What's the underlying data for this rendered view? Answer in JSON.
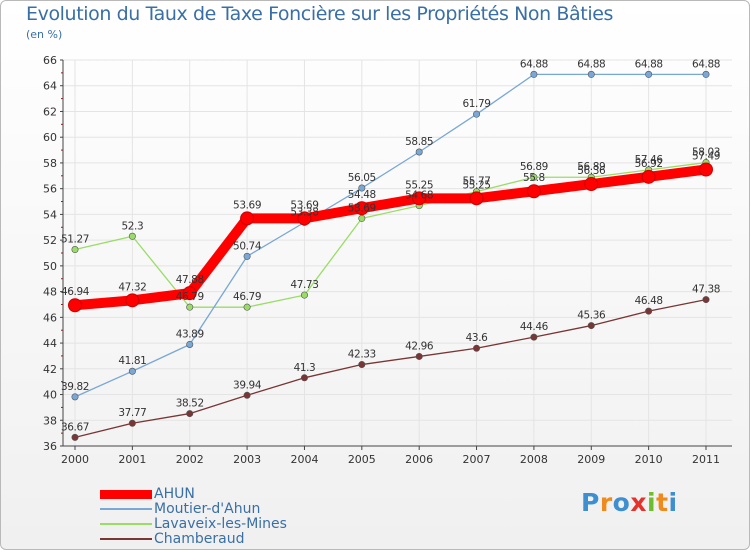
{
  "title": "Evolution du Taux de Taxe Foncière sur les Propriétés Non Bâties",
  "subtitle": "(en %)",
  "logo": "Proxiti",
  "chart_data": {
    "type": "line",
    "title": "Evolution du Taux de Taxe Foncière sur les Propriétés Non Bâties",
    "ylabel": "(en %)",
    "x": [
      "2000",
      "2001",
      "2002",
      "2003",
      "2004",
      "2005",
      "2006",
      "2007",
      "2008",
      "2009",
      "2010",
      "2011"
    ],
    "ylim": [
      36,
      66
    ],
    "yticks": [
      36,
      38,
      40,
      42,
      44,
      46,
      48,
      50,
      52,
      54,
      56,
      58,
      60,
      62,
      64,
      66
    ],
    "grid": true,
    "legend_position": "bottom-left",
    "series": [
      {
        "name": "AHUN",
        "color": "#ff0000",
        "values": [
          46.94,
          47.32,
          47.88,
          53.69,
          53.69,
          54.48,
          55.25,
          55.25,
          55.8,
          56.36,
          56.92,
          57.49
        ],
        "labels": [
          "46.94",
          "47.32",
          "47.88",
          "53.69",
          "53.69",
          "54.48",
          "55.25",
          "55.25",
          "55.8",
          "56.36",
          "56.92",
          "57.49"
        ]
      },
      {
        "name": "Moutier-d'Ahun",
        "color": "#79a7d6",
        "values": [
          39.82,
          41.81,
          43.89,
          50.74,
          53.38,
          56.05,
          58.85,
          61.79,
          64.88,
          64.88,
          64.88,
          64.88
        ],
        "labels": [
          "39.82",
          "41.81",
          "43.89",
          "50.74",
          "53.38",
          "56.05",
          "58.85",
          "61.79",
          "64.88",
          "64.88",
          "64.88",
          "64.88"
        ]
      },
      {
        "name": "Lavaveix-les-Mines",
        "color": "#99dd66",
        "values": [
          51.27,
          52.3,
          46.79,
          46.79,
          47.73,
          53.69,
          54.68,
          55.77,
          56.89,
          56.89,
          57.46,
          58.03
        ],
        "labels": [
          "51.27",
          "52.3",
          "46.79",
          "46.79",
          "47.73",
          "53.69",
          "54.68",
          "55.77",
          "56.89",
          "56.89",
          "57.46",
          "58.03"
        ]
      },
      {
        "name": "Chamberaud",
        "color": "#7a3535",
        "values": [
          36.67,
          37.77,
          38.52,
          39.94,
          41.3,
          42.33,
          42.96,
          43.6,
          44.46,
          45.36,
          46.48,
          47.38
        ],
        "labels": [
          "36.67",
          "37.77",
          "38.52",
          "39.94",
          "41.3",
          "42.33",
          "42.96",
          "43.6",
          "44.46",
          "45.36",
          "46.48",
          "47.38"
        ]
      }
    ]
  }
}
